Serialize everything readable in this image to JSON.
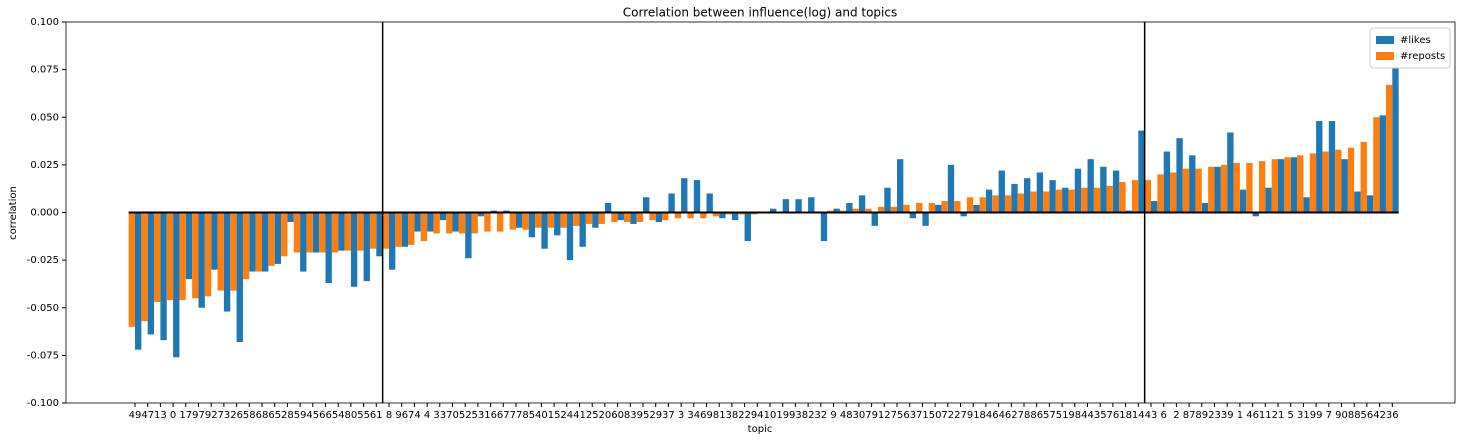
{
  "chart_data": {
    "type": "bar",
    "title": "Correlation between influence(log) and topics",
    "x_label": "topic",
    "y_label": "correlation",
    "categories": [
      "49",
      "47",
      "13",
      "0",
      "17",
      "97",
      "92",
      "73",
      "26",
      "58",
      "68",
      "65",
      "28",
      "59",
      "45",
      "66",
      "54",
      "80",
      "55",
      "61",
      "8",
      "96",
      "74",
      "4",
      "33",
      "70",
      "52",
      "53",
      "16",
      "67",
      "77",
      "85",
      "40",
      "15",
      "24",
      "41",
      "25",
      "20",
      "60",
      "83",
      "95",
      "29",
      "37",
      "3",
      "34",
      "69",
      "81",
      "38",
      "22",
      "94",
      "10",
      "19",
      "93",
      "82",
      "32",
      "9",
      "48",
      "30",
      "79",
      "12",
      "75",
      "63",
      "71",
      "50",
      "72",
      "27",
      "91",
      "84",
      "64",
      "62",
      "78",
      "86",
      "57",
      "51",
      "98",
      "44",
      "35",
      "76",
      "18",
      "14",
      "43",
      "6",
      "2",
      "87",
      "89",
      "23",
      "39",
      "1",
      "46",
      "11",
      "21",
      "5",
      "31",
      "99",
      "7",
      "90",
      "88",
      "56",
      "42",
      "36"
    ],
    "series": [
      {
        "name": "#likes",
        "color": "#1f77b4",
        "values": [
          -0.072,
          -0.064,
          -0.067,
          -0.076,
          -0.035,
          -0.05,
          -0.03,
          -0.052,
          -0.068,
          -0.031,
          -0.031,
          -0.027,
          -0.005,
          -0.031,
          -0.021,
          -0.037,
          -0.02,
          -0.039,
          -0.036,
          -0.023,
          -0.03,
          -0.018,
          -0.01,
          -0.01,
          -0.004,
          -0.01,
          -0.024,
          -0.002,
          0.001,
          0.001,
          -0.008,
          -0.013,
          -0.019,
          -0.012,
          -0.025,
          -0.018,
          -0.008,
          0.005,
          -0.004,
          -0.006,
          0.008,
          -0.005,
          0.01,
          0.018,
          0.017,
          0.01,
          -0.003,
          -0.004,
          -0.015,
          0,
          0.002,
          0.007,
          0.007,
          0.008,
          -0.015,
          0.002,
          0.005,
          0.009,
          -0.007,
          0.013,
          0.028,
          -0.003,
          -0.007,
          0.004,
          0.025,
          -0.002,
          0.004,
          0.012,
          0.022,
          0.015,
          0.018,
          0.021,
          0.017,
          0.013,
          0.023,
          0.028,
          0.024,
          0.022,
          0.001,
          0.043,
          0.006,
          0.032,
          0.039,
          0.03,
          0.005,
          0.024,
          0.042,
          0.012,
          -0.002,
          0.013,
          0.028,
          0.029,
          0.008,
          0.048,
          0.048,
          0.028,
          0.011,
          0.009,
          0.051,
          0.077
        ]
      },
      {
        "name": "#reposts",
        "color": "#ff7f0e",
        "values": [
          -0.06,
          -0.057,
          -0.047,
          -0.046,
          -0.046,
          -0.045,
          -0.044,
          -0.041,
          -0.041,
          -0.035,
          -0.031,
          -0.028,
          -0.023,
          -0.021,
          -0.021,
          -0.021,
          -0.021,
          -0.02,
          -0.02,
          -0.019,
          -0.019,
          -0.018,
          -0.017,
          -0.015,
          -0.011,
          -0.011,
          -0.011,
          -0.011,
          -0.01,
          -0.01,
          -0.009,
          -0.009,
          -0.008,
          -0.008,
          -0.008,
          -0.007,
          -0.006,
          -0.006,
          -0.005,
          -0.005,
          -0.005,
          -0.004,
          -0.004,
          -0.003,
          -0.003,
          -0.003,
          -0.002,
          -0.001,
          -0.001,
          -0.001,
          0,
          0,
          0,
          0,
          0,
          0.001,
          0.001,
          0.002,
          0.002,
          0.003,
          0.003,
          0.004,
          0.005,
          0.005,
          0.006,
          0.006,
          0.008,
          0.008,
          0.009,
          0.009,
          0.01,
          0.011,
          0.011,
          0.012,
          0.012,
          0.013,
          0.013,
          0.014,
          0.016,
          0.017,
          0.017,
          0.02,
          0.021,
          0.023,
          0.023,
          0.024,
          0.025,
          0.026,
          0.026,
          0.027,
          0.028,
          0.029,
          0.03,
          0.031,
          0.032,
          0.033,
          0.034,
          0.037,
          0.05,
          0.067
        ]
      }
    ],
    "ylim": [
      -0.1,
      0.1
    ],
    "yticks": [
      {
        "value": -0.1,
        "label": "-0.100"
      },
      -0.075,
      {
        "value": -0.05,
        "label": "-0.050"
      },
      -0.025,
      {
        "value": 0,
        "label": "0.000"
      },
      0.025,
      {
        "value": 0.05,
        "label": "0.050"
      },
      0.075,
      {
        "value": 0.1,
        "label": "0.100"
      }
    ],
    "legend": "upper right"
  }
}
